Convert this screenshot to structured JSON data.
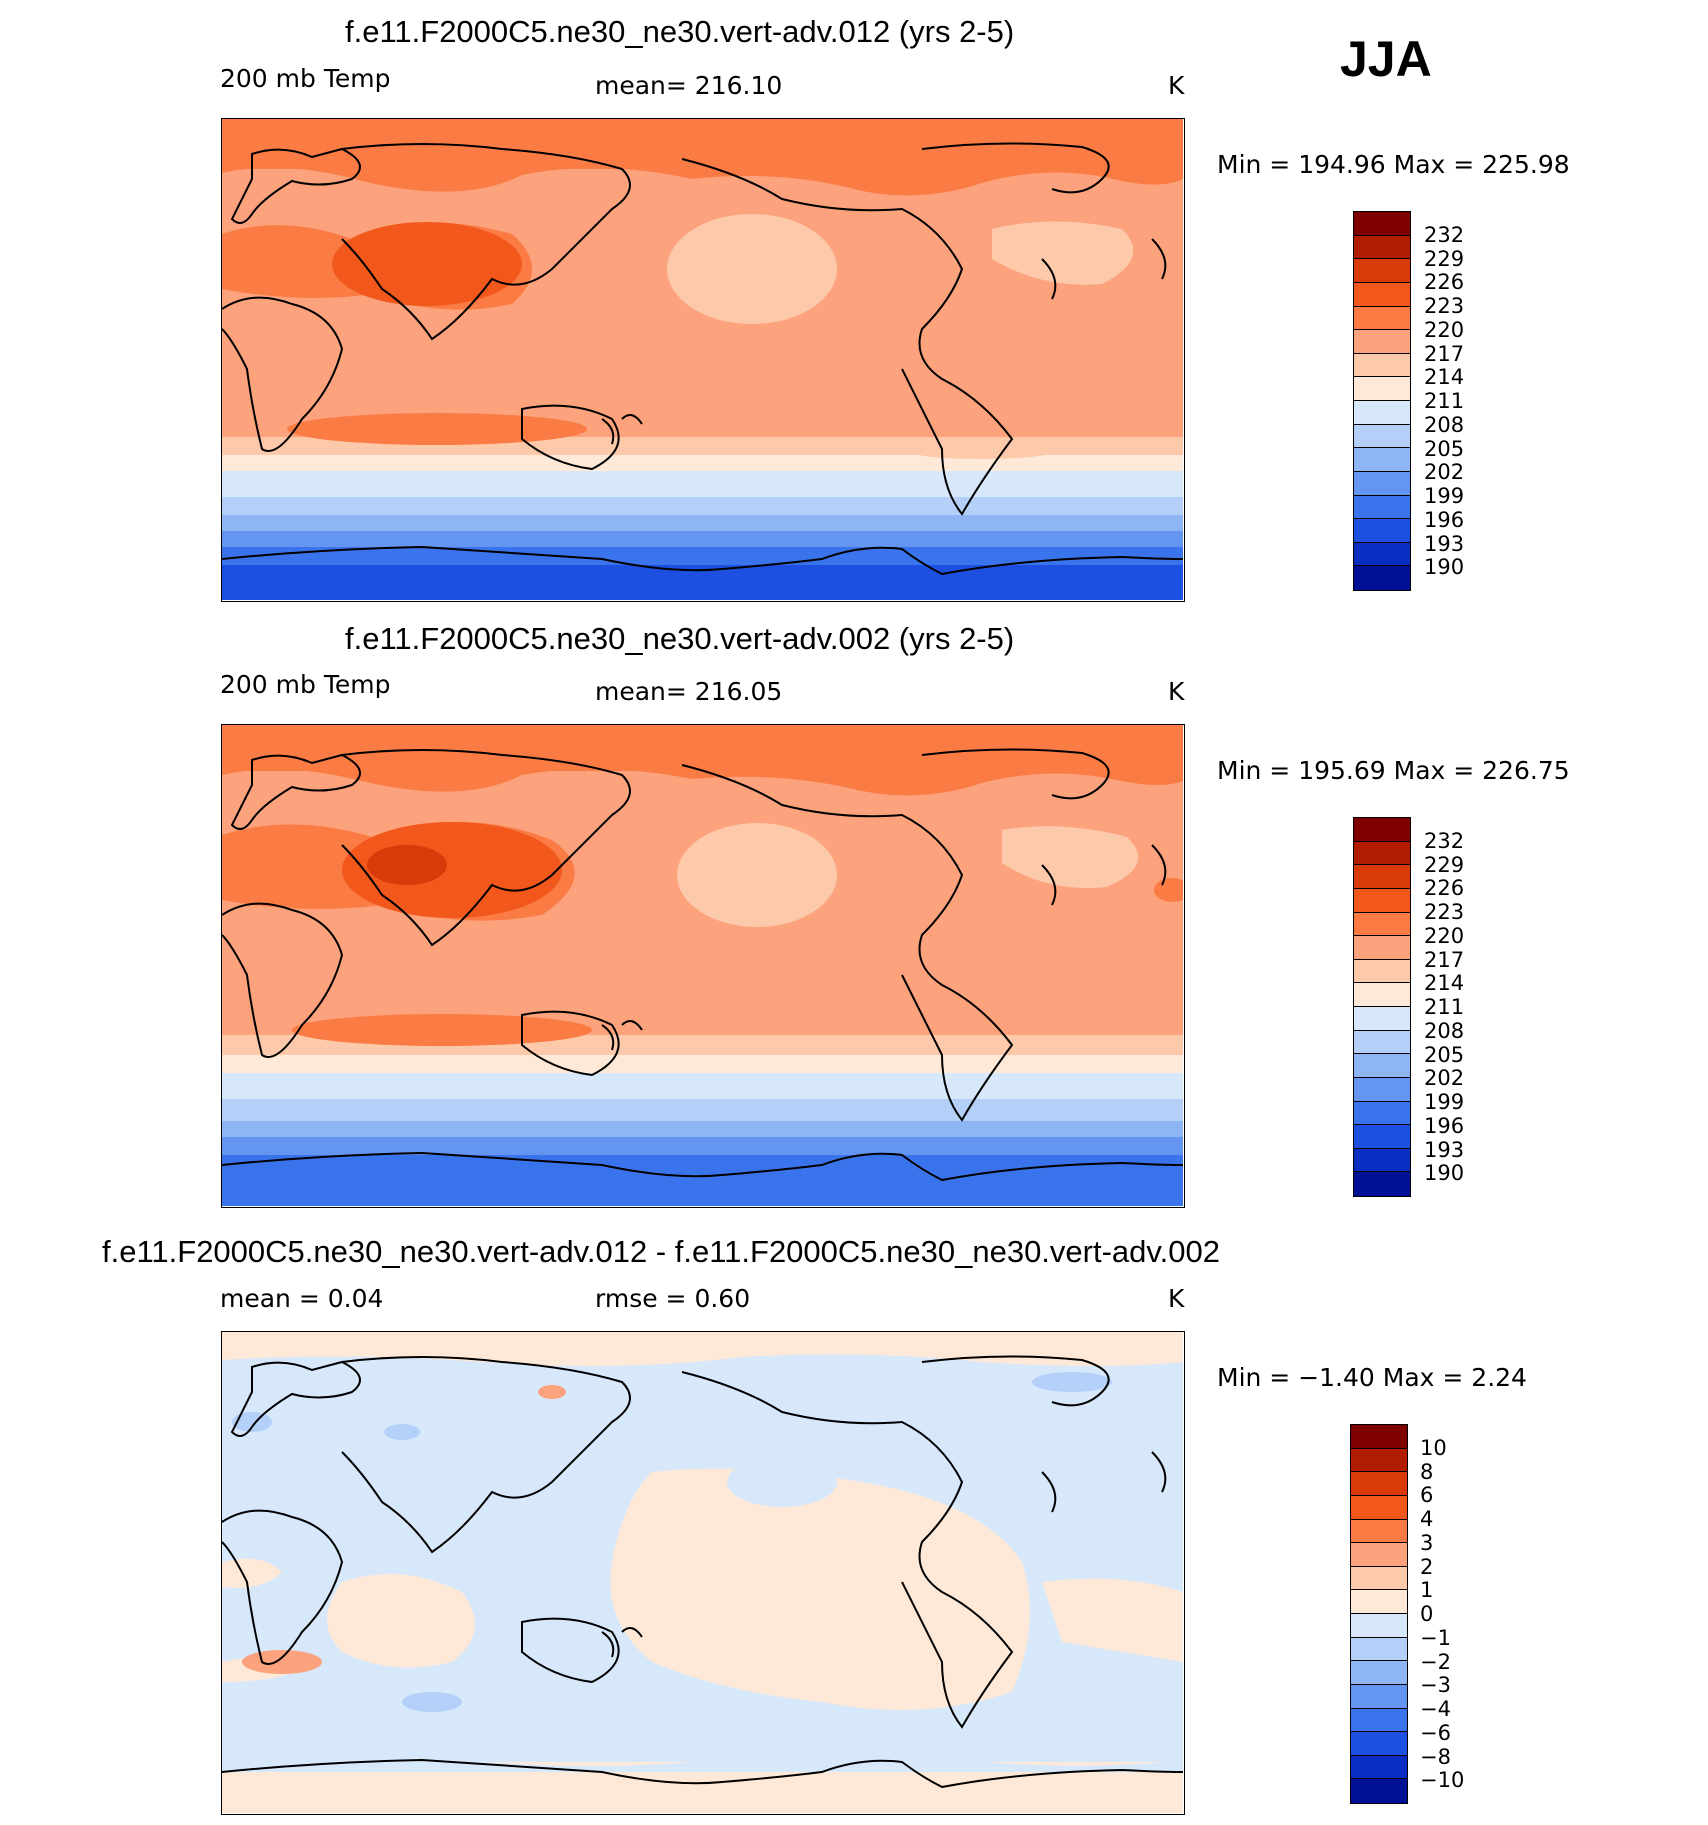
{
  "season": "JJA",
  "panels": [
    {
      "title": "f.e11.F2000C5.ne30_ne30.vert-adv.012 (yrs 2-5)",
      "left_label": "200 mb Temp",
      "center_label": "mean= 216.10",
      "units": "K",
      "minmax": "Min = 194.96 Max = 225.98",
      "colorbar": {
        "ticks": [
          "232",
          "229",
          "226",
          "223",
          "220",
          "217",
          "214",
          "211",
          "208",
          "205",
          "202",
          "199",
          "196",
          "193",
          "190"
        ],
        "colors": [
          "#7f0000",
          "#b21c00",
          "#d93a0a",
          "#f2581c",
          "#fb7b45",
          "#fca27c",
          "#fdc9ab",
          "#fee9d8",
          "#d7e8fb",
          "#b4d0f8",
          "#8eb5f4",
          "#6495f0",
          "#3a74ec",
          "#1d4fe0",
          "#0a2dc2",
          "#001196"
        ]
      }
    },
    {
      "title": "f.e11.F2000C5.ne30_ne30.vert-adv.002 (yrs 2-5)",
      "left_label": "200 mb Temp",
      "center_label": "mean= 216.05",
      "units": "K",
      "minmax": "Min = 195.69 Max = 226.75",
      "colorbar": {
        "ticks": [
          "232",
          "229",
          "226",
          "223",
          "220",
          "217",
          "214",
          "211",
          "208",
          "205",
          "202",
          "199",
          "196",
          "193",
          "190"
        ],
        "colors": [
          "#7f0000",
          "#b21c00",
          "#d93a0a",
          "#f2581c",
          "#fb7b45",
          "#fca27c",
          "#fdc9ab",
          "#fee9d8",
          "#d7e8fb",
          "#b4d0f8",
          "#8eb5f4",
          "#6495f0",
          "#3a74ec",
          "#1d4fe0",
          "#0a2dc2",
          "#001196"
        ]
      }
    },
    {
      "title": "f.e11.F2000C5.ne30_ne30.vert-adv.012 - f.e11.F2000C5.ne30_ne30.vert-adv.002",
      "left_label": "mean = 0.04",
      "center_label": "rmse = 0.60",
      "units": "K",
      "minmax": "Min = −1.40 Max = 2.24",
      "colorbar": {
        "ticks": [
          "10",
          "8",
          "6",
          "4",
          "3",
          "2",
          "1",
          "0",
          "−1",
          "−2",
          "−3",
          "−4",
          "−6",
          "−8",
          "−10"
        ],
        "colors": [
          "#7f0000",
          "#b21c00",
          "#d93a0a",
          "#f2581c",
          "#fb7b45",
          "#fca27c",
          "#fdc9ab",
          "#fee9d8",
          "#d7e8fb",
          "#b4d0f8",
          "#8eb5f4",
          "#6495f0",
          "#3a74ec",
          "#1d4fe0",
          "#0a2dc2",
          "#001196"
        ]
      }
    }
  ]
}
